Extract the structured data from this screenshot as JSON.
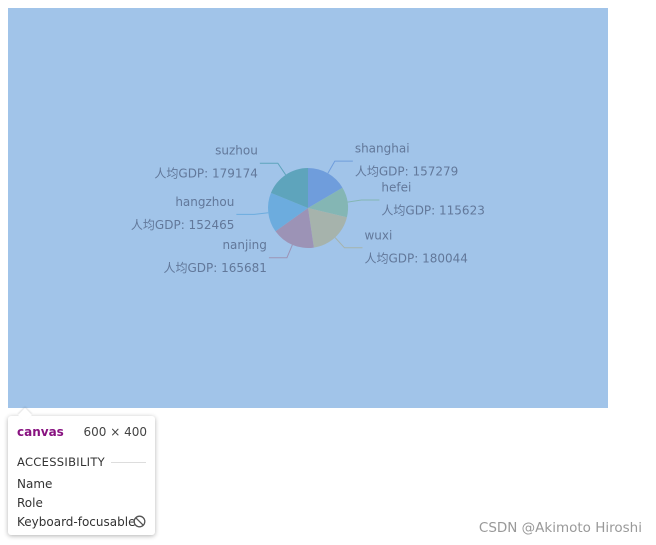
{
  "chart_data": {
    "type": "pie",
    "categories": [
      "shanghai",
      "hefei",
      "wuxi",
      "nanjing",
      "hangzhou",
      "suzhou"
    ],
    "values": [
      157279,
      115623,
      180044,
      165681,
      152465,
      179174
    ],
    "value_labels": [
      "人均GDP: 157279",
      "人均GDP: 115623",
      "人均GDP: 180044",
      "人均GDP: 165681",
      "人均GDP: 152465",
      "人均GDP: 179174"
    ],
    "colors": [
      "#6f9ddc",
      "#84b6b4",
      "#a6b3ac",
      "#9c93b6",
      "#6cacde",
      "#5ea4bc"
    ]
  },
  "inspector": {
    "element": "canvas",
    "size": "600 × 400",
    "section": "ACCESSIBILITY",
    "rows": [
      "Name",
      "Role",
      "Keyboard-focusable"
    ]
  },
  "watermark": "CSDN @Akimoto Hiroshi"
}
